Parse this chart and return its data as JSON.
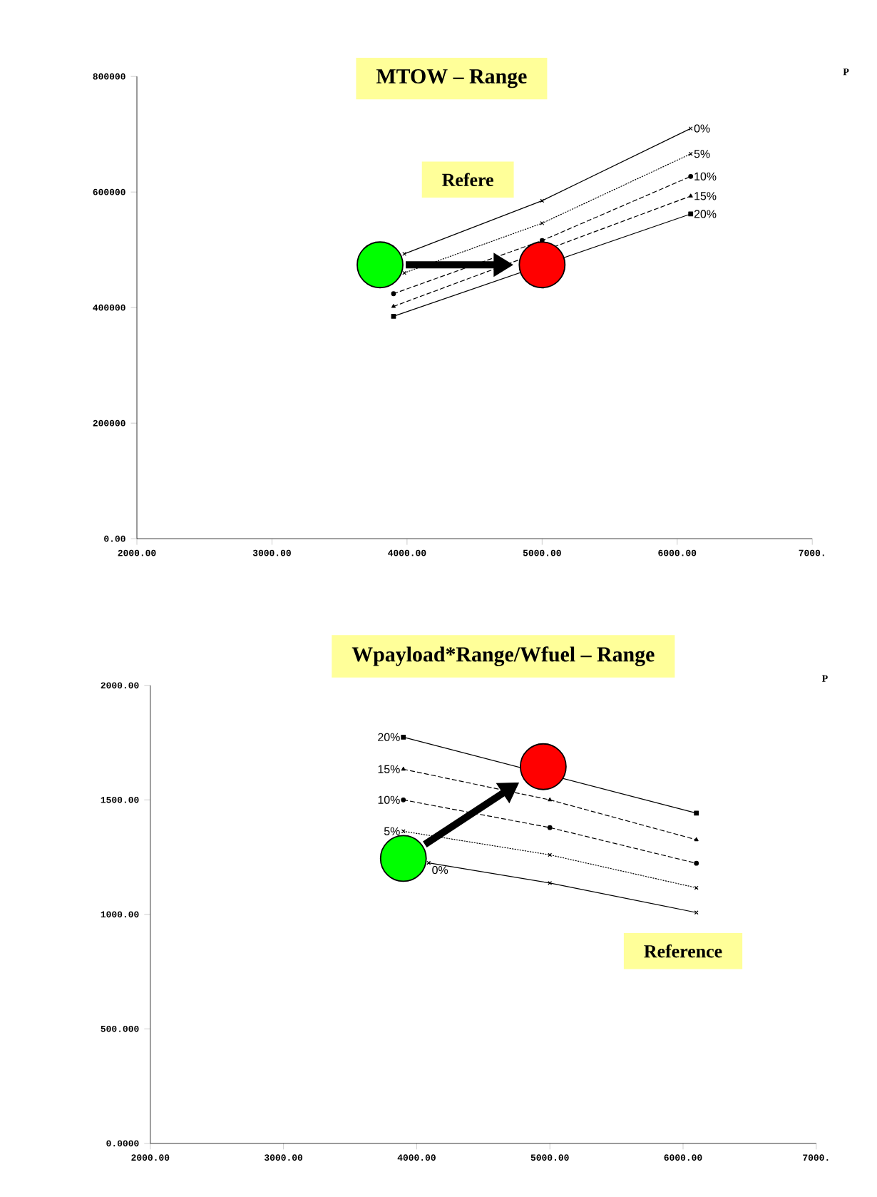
{
  "chart_data": [
    {
      "type": "line",
      "title": "MTOW – Range",
      "annotations": [
        "Refere",
        "P"
      ],
      "x": [
        3900,
        5000,
        6100
      ],
      "xlim": [
        2000,
        7000
      ],
      "xticks": [
        {
          "value": 2000,
          "label": "2000.00"
        },
        {
          "value": 3000,
          "label": "3000.00"
        },
        {
          "value": 4000,
          "label": "4000.00"
        },
        {
          "value": 5000,
          "label": "5000.00"
        },
        {
          "value": 6000,
          "label": "6000.00"
        },
        {
          "value": 7000,
          "label": "7000."
        }
      ],
      "ylim": [
        0,
        800000
      ],
      "yticks": [
        {
          "value": 0,
          "label": "0.00"
        },
        200000,
        400000,
        600000,
        800000
      ],
      "series": [
        {
          "name": "0%",
          "color": "#000000",
          "marker": "cross",
          "line_style": "solid",
          "x": [
            3980,
            5000,
            6100
          ],
          "values": [
            493000,
            585000,
            710000
          ]
        },
        {
          "name": "5%",
          "color": "#000000",
          "marker": "cross",
          "line_style": "dotted",
          "x": [
            3980,
            5000,
            6100
          ],
          "values": [
            460000,
            546000,
            666000
          ]
        },
        {
          "name": "10%",
          "color": "#000000",
          "marker": "circle",
          "line_style": "dashed",
          "values": [
            424000,
            516000,
            627000
          ]
        },
        {
          "name": "15%",
          "color": "#000000",
          "marker": "triangle",
          "line_style": "dashed",
          "values": [
            402000,
            null,
            593000
          ]
        },
        {
          "name": "20%",
          "color": "#000000",
          "marker": "square",
          "line_style": "solid",
          "values": [
            385000,
            null,
            562000
          ]
        },
        {
          "type": "scatter",
          "color": "#00ff00",
          "marker": "circle",
          "x": [
            3800
          ],
          "values": [
            474000
          ]
        },
        {
          "type": "scatter",
          "color": "#ff0000",
          "marker": "circle",
          "x": [
            5000
          ],
          "values": [
            474000
          ]
        }
      ]
    },
    {
      "type": "line",
      "title": "Wpayload*Range/Wfuel – Range",
      "annotations": [
        "Reference",
        "P"
      ],
      "x": [
        3900,
        5000,
        6100
      ],
      "xlim": [
        2000,
        7000
      ],
      "xticks": [
        {
          "value": 2000,
          "label": "2000.00"
        },
        {
          "value": 3000,
          "label": "3000.00"
        },
        {
          "value": 4000,
          "label": "4000.00"
        },
        {
          "value": 5000,
          "label": "5000.00"
        },
        {
          "value": 6000,
          "label": "6000.00"
        },
        {
          "value": 7000,
          "label": "7000."
        }
      ],
      "ylim": [
        0,
        2000
      ],
      "yticks": [
        {
          "value": 0,
          "label": "0.0000"
        },
        {
          "value": 500,
          "label": "500.000"
        },
        {
          "value": 1000,
          "label": "1000.00"
        },
        {
          "value": 1500,
          "label": "1500.00"
        },
        {
          "value": 2000,
          "label": "2000.00"
        }
      ],
      "series": [
        {
          "name": "20%",
          "color": "#000000",
          "marker": "square",
          "line_style": "solid",
          "values": [
            1774,
            null,
            1442
          ]
        },
        {
          "name": "15%",
          "color": "#000000",
          "marker": "triangle",
          "line_style": "dashed",
          "values": [
            1634,
            1500,
            1326
          ]
        },
        {
          "name": "10%",
          "color": "#000000",
          "marker": "circle",
          "line_style": "dashed",
          "values": [
            1500,
            1379,
            1223
          ]
        },
        {
          "name": "5%",
          "color": "#000000",
          "marker": "cross",
          "line_style": "dotted",
          "values": [
            1363,
            1260,
            1116
          ]
        },
        {
          "name": "0%",
          "color": "#000000",
          "marker": "cross",
          "line_style": "solid",
          "x": [
            4090,
            5000,
            6100
          ],
          "values": [
            1225,
            1137,
            1008
          ]
        },
        {
          "type": "scatter",
          "color": "#00ff00",
          "marker": "circle",
          "x": [
            3900
          ],
          "values": [
            1244
          ]
        },
        {
          "type": "scatter",
          "color": "#ff0000",
          "marker": "circle",
          "x": [
            4950
          ],
          "values": [
            1645
          ]
        }
      ]
    }
  ]
}
